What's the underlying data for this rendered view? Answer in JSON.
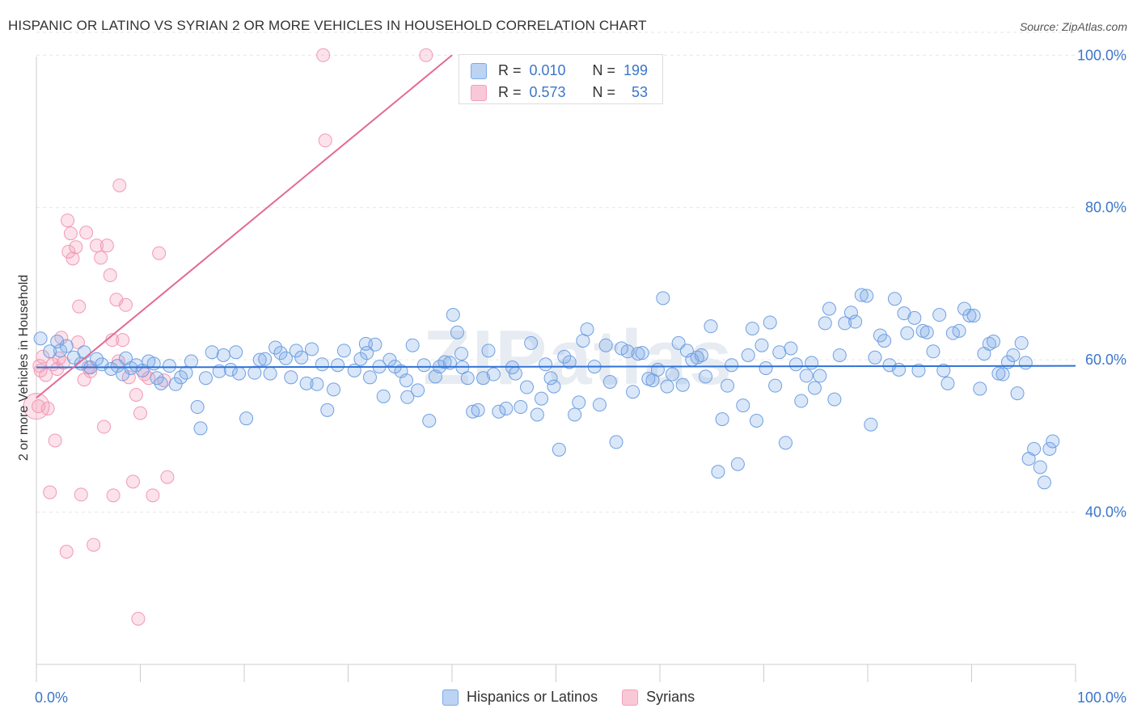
{
  "title": "HISPANIC OR LATINO VS SYRIAN 2 OR MORE VEHICLES IN HOUSEHOLD CORRELATION CHART",
  "source": "Source: ZipAtlas.com",
  "watermark": "ZIPatlas",
  "colors": {
    "blue": "#7aaae8",
    "blue_line": "#2f72d6",
    "pink": "#f4a0ba",
    "pink_line": "#e46a92",
    "axis_text": "#3b76c9"
  },
  "stats": [
    {
      "r_label": "R =",
      "r_value": "0.010",
      "n_label": "N =",
      "n_value": "199"
    },
    {
      "r_label": "R =",
      "r_value": "0.573",
      "n_label": "N =",
      "n_value": "53"
    }
  ],
  "legend": [
    {
      "label": "Hispanics or Latinos"
    },
    {
      "label": "Syrians"
    }
  ],
  "chart_data": {
    "type": "scatter",
    "title": "HISPANIC OR LATINO VS SYRIAN 2 OR MORE VEHICLES IN HOUSEHOLD CORRELATION CHART",
    "xlabel": "",
    "ylabel": "2 or more Vehicles in Household",
    "xlim": [
      0,
      100
    ],
    "ylim": [
      20,
      103
    ],
    "x_tick_labels": [
      "0.0%",
      "100.0%"
    ],
    "y_ticks": [
      40,
      60,
      80,
      100
    ],
    "y_tick_labels": [
      "40.0%",
      "60.0%",
      "80.0%",
      "100.0%"
    ],
    "grid": true,
    "series": [
      {
        "name": "Hispanics or Latinos",
        "color": "#7aaae8",
        "trend": {
          "x": [
            0,
            100
          ],
          "y": [
            59.0,
            59.2
          ]
        },
        "points": [
          [
            0.4,
            62.8
          ],
          [
            1.3,
            61.1
          ],
          [
            2.0,
            62.4
          ],
          [
            2.3,
            61.2
          ],
          [
            2.9,
            61.8
          ],
          [
            3.6,
            60.3
          ],
          [
            4.3,
            59.5
          ],
          [
            4.6,
            61.0
          ],
          [
            5.2,
            59.0
          ],
          [
            5.8,
            60.1
          ],
          [
            6.3,
            59.4
          ],
          [
            7.2,
            58.8
          ],
          [
            7.8,
            59.2
          ],
          [
            8.3,
            58.1
          ],
          [
            8.6,
            60.2
          ],
          [
            9.1,
            58.9
          ],
          [
            9.6,
            59.3
          ],
          [
            10.2,
            58.6
          ],
          [
            10.8,
            59.8
          ],
          [
            11.3,
            59.5
          ],
          [
            11.6,
            57.6
          ],
          [
            12.0,
            56.9
          ],
          [
            12.8,
            59.2
          ],
          [
            13.4,
            56.8
          ],
          [
            13.9,
            57.7
          ],
          [
            14.4,
            58.3
          ],
          [
            14.9,
            59.8
          ],
          [
            15.5,
            53.8
          ],
          [
            15.8,
            51.0
          ],
          [
            16.3,
            57.6
          ],
          [
            16.9,
            61.0
          ],
          [
            17.6,
            58.5
          ],
          [
            18.0,
            60.6
          ],
          [
            18.7,
            58.7
          ],
          [
            19.2,
            61.0
          ],
          [
            19.5,
            58.2
          ],
          [
            20.2,
            52.3
          ],
          [
            21.0,
            58.3
          ],
          [
            21.5,
            60.0
          ],
          [
            22.0,
            60.1
          ],
          [
            22.5,
            58.2
          ],
          [
            23.0,
            61.6
          ],
          [
            23.5,
            60.9
          ],
          [
            24.0,
            60.2
          ],
          [
            24.5,
            57.7
          ],
          [
            25.0,
            61.2
          ],
          [
            25.5,
            60.3
          ],
          [
            26.0,
            56.9
          ],
          [
            26.5,
            61.4
          ],
          [
            27.0,
            56.8
          ],
          [
            27.5,
            59.4
          ],
          [
            28.0,
            53.4
          ],
          [
            28.6,
            56.1
          ],
          [
            29.0,
            59.3
          ],
          [
            29.6,
            61.2
          ],
          [
            30.6,
            58.6
          ],
          [
            31.2,
            60.1
          ],
          [
            31.7,
            62.1
          ],
          [
            32.1,
            57.7
          ],
          [
            32.6,
            62.0
          ],
          [
            33.0,
            59.1
          ],
          [
            33.4,
            55.2
          ],
          [
            34.0,
            60.0
          ],
          [
            34.5,
            59.1
          ],
          [
            35.1,
            58.5
          ],
          [
            35.6,
            57.3
          ],
          [
            36.2,
            61.9
          ],
          [
            36.7,
            56.0
          ],
          [
            37.3,
            59.3
          ],
          [
            37.8,
            52.0
          ],
          [
            38.4,
            57.8
          ],
          [
            38.8,
            59.1
          ],
          [
            39.3,
            59.7
          ],
          [
            39.8,
            59.6
          ],
          [
            40.1,
            65.9
          ],
          [
            40.5,
            63.6
          ],
          [
            41.0,
            59.0
          ],
          [
            41.5,
            57.6
          ],
          [
            42.0,
            53.2
          ],
          [
            42.5,
            53.4
          ],
          [
            43.0,
            57.6
          ],
          [
            43.5,
            61.2
          ],
          [
            44.0,
            58.1
          ],
          [
            44.5,
            53.2
          ],
          [
            45.2,
            53.6
          ],
          [
            45.8,
            59.0
          ],
          [
            46.1,
            58.2
          ],
          [
            46.6,
            53.8
          ],
          [
            47.2,
            56.4
          ],
          [
            47.6,
            62.2
          ],
          [
            48.2,
            52.8
          ],
          [
            48.6,
            54.9
          ],
          [
            49.0,
            59.4
          ],
          [
            49.5,
            57.6
          ],
          [
            49.8,
            56.5
          ],
          [
            50.3,
            48.2
          ],
          [
            50.8,
            60.4
          ],
          [
            51.3,
            59.7
          ],
          [
            51.8,
            52.8
          ],
          [
            52.2,
            54.4
          ],
          [
            52.6,
            62.5
          ],
          [
            53.0,
            64.0
          ],
          [
            53.7,
            59.1
          ],
          [
            54.2,
            54.1
          ],
          [
            54.8,
            61.9
          ],
          [
            55.2,
            57.1
          ],
          [
            55.8,
            49.2
          ],
          [
            56.3,
            61.5
          ],
          [
            56.9,
            61.1
          ],
          [
            57.4,
            55.8
          ],
          [
            57.9,
            60.8
          ],
          [
            58.3,
            60.9
          ],
          [
            58.9,
            57.5
          ],
          [
            59.3,
            57.3
          ],
          [
            59.8,
            58.7
          ],
          [
            60.3,
            68.1
          ],
          [
            60.7,
            56.5
          ],
          [
            61.2,
            58.1
          ],
          [
            61.8,
            62.2
          ],
          [
            62.2,
            56.7
          ],
          [
            62.6,
            61.2
          ],
          [
            63.1,
            60.0
          ],
          [
            63.6,
            60.3
          ],
          [
            64.0,
            60.6
          ],
          [
            64.4,
            57.8
          ],
          [
            64.9,
            64.4
          ],
          [
            65.6,
            45.3
          ],
          [
            66.0,
            52.2
          ],
          [
            66.5,
            56.6
          ],
          [
            66.9,
            59.3
          ],
          [
            67.5,
            46.3
          ],
          [
            68.0,
            54.0
          ],
          [
            68.5,
            60.6
          ],
          [
            68.9,
            64.1
          ],
          [
            69.3,
            52.0
          ],
          [
            69.8,
            61.9
          ],
          [
            70.2,
            58.9
          ],
          [
            70.6,
            64.9
          ],
          [
            71.1,
            56.6
          ],
          [
            71.5,
            61.0
          ],
          [
            72.1,
            49.1
          ],
          [
            72.6,
            61.5
          ],
          [
            73.1,
            59.4
          ],
          [
            73.6,
            54.6
          ],
          [
            74.1,
            57.9
          ],
          [
            74.6,
            59.6
          ],
          [
            74.9,
            56.3
          ],
          [
            75.4,
            57.9
          ],
          [
            75.9,
            64.8
          ],
          [
            76.3,
            66.7
          ],
          [
            76.8,
            54.8
          ],
          [
            77.3,
            60.6
          ],
          [
            77.8,
            64.8
          ],
          [
            78.4,
            66.2
          ],
          [
            78.8,
            65.0
          ],
          [
            79.4,
            68.5
          ],
          [
            79.9,
            68.4
          ],
          [
            80.3,
            51.5
          ],
          [
            80.7,
            60.3
          ],
          [
            81.2,
            63.2
          ],
          [
            81.6,
            62.5
          ],
          [
            82.1,
            59.3
          ],
          [
            82.6,
            68.0
          ],
          [
            83.0,
            58.7
          ],
          [
            83.5,
            66.1
          ],
          [
            83.8,
            63.5
          ],
          [
            84.5,
            65.5
          ],
          [
            84.9,
            58.6
          ],
          [
            85.3,
            63.8
          ],
          [
            85.7,
            63.6
          ],
          [
            86.3,
            61.1
          ],
          [
            86.9,
            65.9
          ],
          [
            87.3,
            58.6
          ],
          [
            87.7,
            56.9
          ],
          [
            88.2,
            63.5
          ],
          [
            88.8,
            63.8
          ],
          [
            89.3,
            66.7
          ],
          [
            89.8,
            65.8
          ],
          [
            90.2,
            65.8
          ],
          [
            90.8,
            56.2
          ],
          [
            91.2,
            60.8
          ],
          [
            91.7,
            62.1
          ],
          [
            92.1,
            62.4
          ],
          [
            92.6,
            58.2
          ],
          [
            93.0,
            58.1
          ],
          [
            93.5,
            59.7
          ],
          [
            94.0,
            60.6
          ],
          [
            94.4,
            55.6
          ],
          [
            94.8,
            62.2
          ],
          [
            95.2,
            59.6
          ],
          [
            95.5,
            47.0
          ],
          [
            96.0,
            48.3
          ],
          [
            96.6,
            45.9
          ],
          [
            97.0,
            43.9
          ],
          [
            97.5,
            48.3
          ],
          [
            97.8,
            49.3
          ],
          [
            31.8,
            60.9
          ],
          [
            40.9,
            60.8
          ],
          [
            35.7,
            55.1
          ]
        ]
      },
      {
        "name": "Syrians",
        "color": "#f4a0ba",
        "trend": {
          "x": [
            0,
            40
          ],
          "y": [
            55.0,
            100.0
          ]
        },
        "points": [
          [
            0.2,
            53.9
          ],
          [
            0.3,
            59.2
          ],
          [
            0.4,
            58.6
          ],
          [
            0.6,
            60.4
          ],
          [
            0.9,
            58.0
          ],
          [
            1.1,
            53.6
          ],
          [
            1.3,
            42.6
          ],
          [
            1.6,
            59.4
          ],
          [
            1.8,
            49.4
          ],
          [
            2.0,
            58.8
          ],
          [
            2.2,
            60.2
          ],
          [
            2.4,
            62.9
          ],
          [
            2.6,
            59.6
          ],
          [
            2.9,
            34.8
          ],
          [
            3.0,
            78.3
          ],
          [
            3.1,
            74.2
          ],
          [
            3.3,
            76.6
          ],
          [
            3.5,
            73.3
          ],
          [
            3.8,
            74.8
          ],
          [
            4.0,
            62.3
          ],
          [
            4.1,
            67.0
          ],
          [
            4.3,
            42.3
          ],
          [
            4.6,
            57.4
          ],
          [
            4.8,
            76.7
          ],
          [
            5.0,
            59.0
          ],
          [
            5.2,
            58.5
          ],
          [
            5.5,
            35.7
          ],
          [
            5.8,
            75.0
          ],
          [
            6.2,
            73.4
          ],
          [
            6.5,
            51.2
          ],
          [
            6.8,
            75.0
          ],
          [
            7.1,
            71.1
          ],
          [
            7.3,
            62.6
          ],
          [
            7.4,
            42.2
          ],
          [
            7.7,
            67.9
          ],
          [
            7.9,
            59.8
          ],
          [
            8.0,
            82.9
          ],
          [
            8.3,
            62.6
          ],
          [
            8.6,
            67.2
          ],
          [
            8.9,
            57.7
          ],
          [
            9.3,
            44.0
          ],
          [
            9.6,
            55.4
          ],
          [
            9.8,
            26.0
          ],
          [
            10.0,
            53.0
          ],
          [
            10.4,
            58.1
          ],
          [
            10.8,
            57.6
          ],
          [
            11.2,
            42.2
          ],
          [
            11.8,
            74.0
          ],
          [
            12.3,
            57.3
          ],
          [
            12.6,
            44.6
          ],
          [
            27.6,
            100.0
          ],
          [
            27.8,
            88.8
          ],
          [
            37.5,
            100.0
          ]
        ]
      }
    ]
  }
}
